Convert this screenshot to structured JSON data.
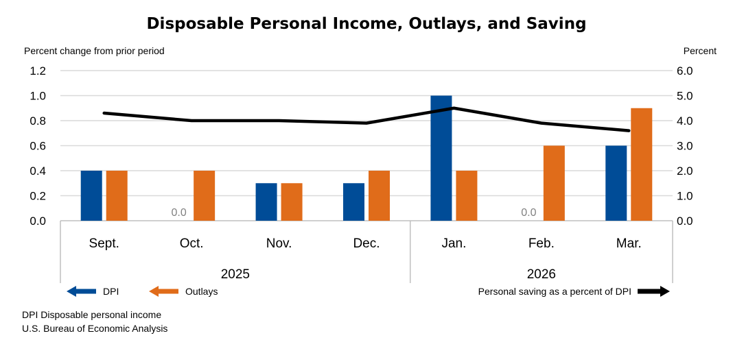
{
  "chart_data": {
    "type": "bar",
    "title": "Disposable Personal Income, Outlays, and Saving",
    "y_left_label": "Percent change from prior period",
    "y_right_label": "Percent",
    "y_left_lim": [
      0,
      1.2
    ],
    "y_left_ticks": [
      "1.2",
      "1.0",
      "0.8",
      "0.6",
      "0.4",
      "0.2",
      "0.0"
    ],
    "y_right_lim": [
      0,
      6
    ],
    "y_right_ticks": [
      "6.0",
      "5.0",
      "4.0",
      "3.0",
      "2.0",
      "1.0",
      "0.0"
    ],
    "categories": [
      "Sept.",
      "Oct.",
      "Nov.",
      "Dec.",
      "Jan.",
      "Feb.",
      "Mar."
    ],
    "year_groups": [
      {
        "label": "2025",
        "start": 0,
        "end": 3
      },
      {
        "label": "2026",
        "start": 4,
        "end": 6
      }
    ],
    "series": [
      {
        "name": "DPI",
        "type": "bar",
        "axis": "left",
        "color": "#004c97",
        "values": [
          0.4,
          0.0,
          0.3,
          0.3,
          1.0,
          0.0,
          0.6
        ]
      },
      {
        "name": "Outlays",
        "type": "bar",
        "axis": "left",
        "color": "#e06c1a",
        "values": [
          0.4,
          0.4,
          0.3,
          0.4,
          0.4,
          0.6,
          0.9
        ]
      },
      {
        "name": "Personal saving as a percent of DPI",
        "type": "line",
        "axis": "right",
        "color": "#000000",
        "values": [
          4.3,
          4.0,
          4.0,
          3.9,
          4.5,
          3.9,
          3.6
        ]
      }
    ],
    "zero_value_label": "0.0",
    "grid": true,
    "legend": "bottom"
  },
  "footnotes": {
    "line1": "DPI Disposable personal income",
    "line2": "U.S. Bureau of Economic Analysis"
  }
}
